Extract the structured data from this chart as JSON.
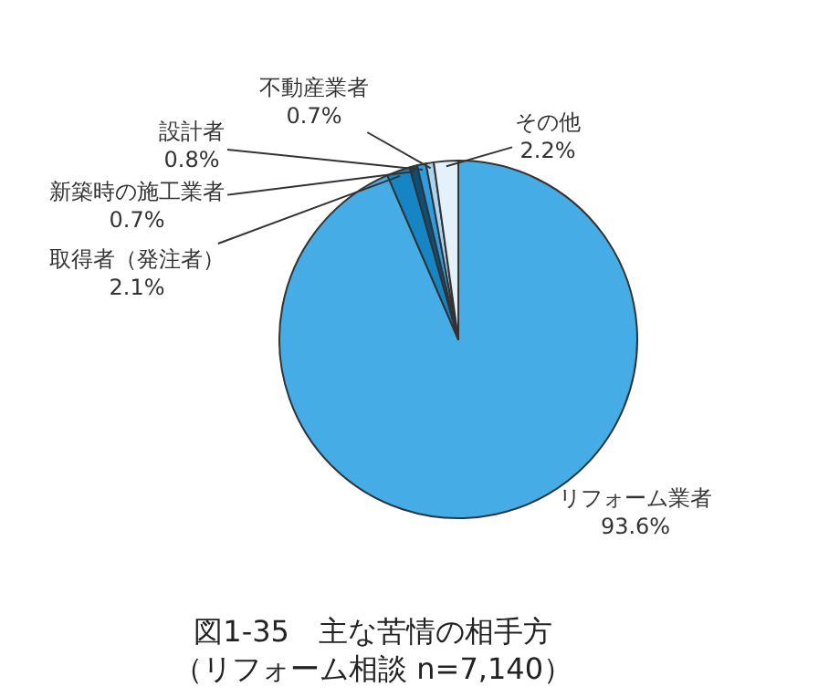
{
  "chart_data": {
    "type": "pie",
    "title": "図1-35　主な苦情の相手方",
    "subtitle": "（リフォーム相談 n=7,140）",
    "categories": [
      "リフォーム業者",
      "取得者（発注者）",
      "新築時の施工業者",
      "設計者",
      "不動産業者",
      "その他"
    ],
    "values": [
      93.6,
      2.1,
      0.7,
      0.8,
      0.7,
      2.2
    ],
    "colors": [
      "#45ace6",
      "#1585c4",
      "#0b4f7a",
      "#2a9ee0",
      "#a9d4f2",
      "#e4f1fb"
    ],
    "value_labels": [
      "93.6%",
      "2.1%",
      "0.7%",
      "0.8%",
      "0.7%",
      "2.2%"
    ]
  }
}
